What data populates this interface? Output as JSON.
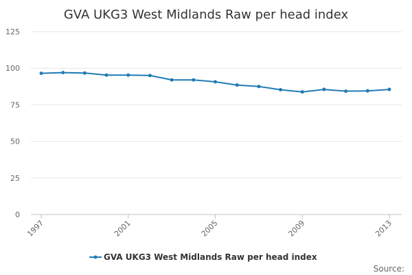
{
  "chart_data": {
    "type": "line",
    "title": "GVA UKG3 West Midlands Raw per head index",
    "xlabel": "",
    "ylabel": "",
    "x": [
      1997,
      1998,
      1999,
      2000,
      2001,
      2002,
      2003,
      2004,
      2005,
      2006,
      2007,
      2008,
      2009,
      2010,
      2011,
      2012,
      2013
    ],
    "x_tick_labels": [
      "1997",
      "2001",
      "2005",
      "2009",
      "2013"
    ],
    "y_tick_labels": [
      "0",
      "25",
      "50",
      "75",
      "100",
      "125"
    ],
    "ylim": [
      0,
      125
    ],
    "grid": true,
    "legend_position": "bottom",
    "series": [
      {
        "name": "GVA UKG3 West Midlands Raw per head index",
        "color": "#1f7bb6",
        "values": [
          96.5,
          97.0,
          96.7,
          95.3,
          95.3,
          95.0,
          92.0,
          92.0,
          90.7,
          88.5,
          87.5,
          85.3,
          83.8,
          85.5,
          84.3,
          84.5,
          85.5
        ]
      }
    ],
    "source_label": "Source:"
  }
}
